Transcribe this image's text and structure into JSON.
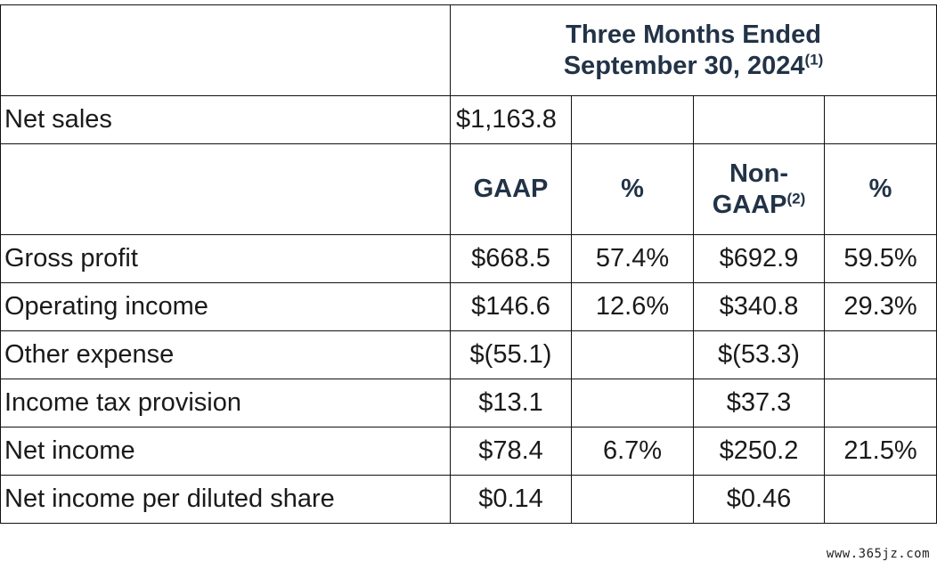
{
  "header": {
    "period_line1": "Three Months Ended",
    "period_line2": "September 30, 2024",
    "period_footnote": "(1)"
  },
  "net_sales": {
    "label": "Net sales",
    "value": "$1,163.8"
  },
  "columns": {
    "gaap": "GAAP",
    "pct1": "%",
    "non_gaap_line1": "Non-",
    "non_gaap_line2": "GAAP",
    "non_gaap_footnote": "(2)",
    "pct2": "%"
  },
  "rows": [
    {
      "label": "Gross profit",
      "gaap": "$668.5",
      "gaap_pct": "57.4%",
      "non_gaap": "$692.9",
      "non_gaap_pct": "59.5%"
    },
    {
      "label": "Operating income",
      "gaap": "$146.6",
      "gaap_pct": "12.6%",
      "non_gaap": "$340.8",
      "non_gaap_pct": "29.3%"
    },
    {
      "label": "Other expense",
      "gaap": "$(55.1)",
      "gaap_pct": "",
      "non_gaap": "$(53.3)",
      "non_gaap_pct": ""
    },
    {
      "label": "Income tax provision",
      "gaap": "$13.1",
      "gaap_pct": "",
      "non_gaap": "$37.3",
      "non_gaap_pct": ""
    },
    {
      "label": "Net income",
      "gaap": "$78.4",
      "gaap_pct": "6.7%",
      "non_gaap": "$250.2",
      "non_gaap_pct": "21.5%"
    },
    {
      "label": "Net income per diluted share",
      "gaap": "$0.14",
      "gaap_pct": "",
      "non_gaap": "$0.46",
      "non_gaap_pct": ""
    }
  ],
  "watermark": "www.365jz.com"
}
